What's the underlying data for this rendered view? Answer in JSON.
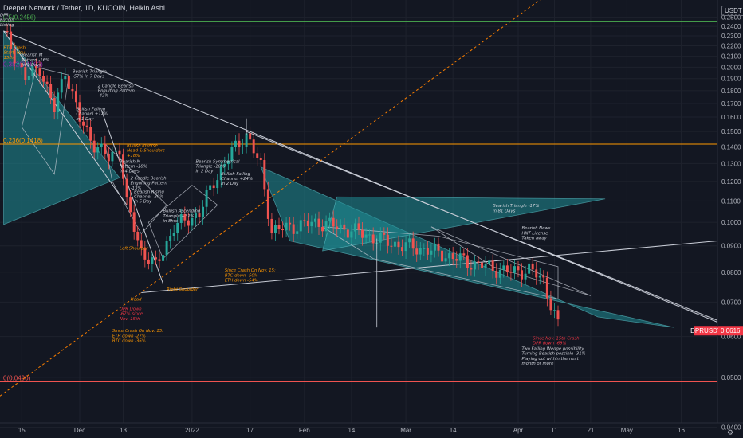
{
  "header": {
    "title": "Deeper Network / Tether, 1D, KUCOIN, Heikin Ashi",
    "currency": "USDT"
  },
  "colors": {
    "background": "#131722",
    "bull": "#26a69a",
    "bear": "#ef5350",
    "fib_0": "#ef5350",
    "fib_236": "#ff9800",
    "fib_382": "#9c27b0",
    "fib_5": "#4caf50",
    "pattern_fill": "#1f8e96",
    "annotation_white": "#d1d4dc",
    "annotation_orange": "#ff9800",
    "annotation_red": "#f23645",
    "price_label_bg": "#f23645"
  },
  "icons": {
    "settings": "gear-icon"
  },
  "chart_data": {
    "type": "candlestick",
    "y_axis": {
      "scale": "log",
      "range": [
        0.0408,
        0.27
      ],
      "ticks": [
        "0.2500",
        "0.2400",
        "0.2300",
        "0.2200",
        "0.2100",
        "0.2000",
        "0.1900",
        "0.1800",
        "0.1700",
        "0.1600",
        "0.1500",
        "0.1400",
        "0.1300",
        "0.1200",
        "0.1100",
        "0.1000",
        "0.0900",
        "0.0800",
        "0.0700",
        "0.0600",
        "0.0500",
        "0.0400"
      ]
    },
    "x_axis": {
      "range": [
        "2021-11-09",
        "2022-05-26"
      ],
      "ticks": [
        {
          "date": "2021-11-15",
          "label": "15"
        },
        {
          "date": "2021-12-01",
          "label": "Dec"
        },
        {
          "date": "2021-12-13",
          "label": "13"
        },
        {
          "date": "2022-01-01",
          "label": "2022"
        },
        {
          "date": "2022-01-17",
          "label": "17"
        },
        {
          "date": "2022-02-01",
          "label": "Feb"
        },
        {
          "date": "2022-02-14",
          "label": "14"
        },
        {
          "date": "2022-03-01",
          "label": "Mar"
        },
        {
          "date": "2022-03-14",
          "label": "14"
        },
        {
          "date": "2022-04-01",
          "label": "Apr"
        },
        {
          "date": "2022-04-11",
          "label": "11"
        },
        {
          "date": "2022-04-21",
          "label": "21"
        },
        {
          "date": "2022-05-01",
          "label": "May"
        },
        {
          "date": "2022-05-16",
          "label": "16"
        }
      ]
    },
    "current_price": {
      "label": "DPRUSDT",
      "value": "0.0616"
    },
    "fib_levels": [
      {
        "label": "0.5(0.2456)",
        "value": 0.2456,
        "key": "fib_5"
      },
      {
        "label": "0.382(0.1992)",
        "value": 0.1992,
        "key": "fib_382"
      },
      {
        "label": "0.236(0.1418)",
        "value": 0.1418,
        "key": "fib_236"
      },
      {
        "label": "0(0.0490)",
        "value": 0.049,
        "key": "fib_0"
      }
    ],
    "anchors": [
      {
        "date": "2021-11-10",
        "price": 0.235
      },
      {
        "date": "2021-11-16",
        "price": 0.19
      },
      {
        "date": "2021-11-20",
        "price": 0.2
      },
      {
        "date": "2021-11-24",
        "price": 0.165
      },
      {
        "date": "2021-11-27",
        "price": 0.198
      },
      {
        "date": "2021-12-01",
        "price": 0.158
      },
      {
        "date": "2021-12-05",
        "price": 0.142
      },
      {
        "date": "2021-12-09",
        "price": 0.133
      },
      {
        "date": "2021-12-12",
        "price": 0.14
      },
      {
        "date": "2021-12-14",
        "price": 0.108
      },
      {
        "date": "2021-12-18",
        "price": 0.088
      },
      {
        "date": "2021-12-22",
        "price": 0.082
      },
      {
        "date": "2021-12-27",
        "price": 0.098
      },
      {
        "date": "2022-01-03",
        "price": 0.104
      },
      {
        "date": "2022-01-07",
        "price": 0.12
      },
      {
        "date": "2022-01-12",
        "price": 0.137
      },
      {
        "date": "2022-01-16",
        "price": 0.148
      },
      {
        "date": "2022-01-20",
        "price": 0.128
      },
      {
        "date": "2022-01-23",
        "price": 0.096
      },
      {
        "date": "2022-01-28",
        "price": 0.098
      },
      {
        "date": "2022-02-05",
        "price": 0.1
      },
      {
        "date": "2022-02-15",
        "price": 0.096
      },
      {
        "date": "2022-02-25",
        "price": 0.091
      },
      {
        "date": "2022-03-08",
        "price": 0.088
      },
      {
        "date": "2022-03-20",
        "price": 0.083
      },
      {
        "date": "2022-03-30",
        "price": 0.08
      },
      {
        "date": "2022-04-04",
        "price": 0.081
      },
      {
        "date": "2022-04-08",
        "price": 0.077
      },
      {
        "date": "2022-04-12",
        "price": 0.063
      }
    ],
    "wicks": [
      {
        "date": "2022-02-21",
        "price": 0.0625
      },
      {
        "date": "2022-01-16",
        "price": 0.159
      }
    ],
    "patterns": [
      {
        "kind": "filled",
        "points": [
          [
            "2021-11-10",
            0.235
          ],
          [
            "2021-12-12",
            0.122
          ],
          [
            "2021-11-10",
            0.099
          ]
        ]
      },
      {
        "kind": "filled",
        "points": [
          [
            "2022-01-20",
            0.128
          ],
          [
            "2022-04-23",
            0.0655
          ],
          [
            "2022-05-14",
            0.0625
          ],
          [
            "2022-01-28",
            0.092
          ]
        ]
      },
      {
        "kind": "filled",
        "points": [
          [
            "2022-02-10",
            0.112
          ],
          [
            "2022-04-25",
            0.111
          ],
          [
            "2022-02-06",
            0.088
          ]
        ]
      },
      {
        "kind": "outline",
        "points": [
          [
            "2021-11-19",
            0.2
          ],
          [
            "2021-11-15",
            0.153
          ],
          [
            "2021-11-24",
            0.124
          ],
          [
            "2021-11-28",
            0.193
          ]
        ]
      },
      {
        "kind": "outline",
        "points": [
          [
            "2021-12-08",
            0.142
          ],
          [
            "2021-12-10",
            0.12
          ],
          [
            "2021-12-18",
            0.095
          ],
          [
            "2021-12-25",
            0.108
          ]
        ]
      },
      {
        "kind": "outline",
        "points": [
          [
            "2021-12-20",
            0.1
          ],
          [
            "2021-12-24",
            0.085
          ],
          [
            "2022-01-08",
            0.108
          ],
          [
            "2022-01-01",
            0.118
          ]
        ]
      },
      {
        "kind": "outline",
        "points": [
          [
            "2022-02-06",
            0.098
          ],
          [
            "2022-03-10",
            0.094
          ],
          [
            "2022-04-12",
            0.082
          ],
          [
            "2022-04-12",
            0.071
          ],
          [
            "2022-02-20",
            0.085
          ]
        ]
      },
      {
        "kind": "outline",
        "points": [
          [
            "2022-03-08",
            0.098
          ],
          [
            "2022-04-21",
            0.072
          ],
          [
            "2022-03-25",
            0.082
          ]
        ]
      }
    ],
    "trend_lines": [
      {
        "from": [
          "2021-11-10",
          0.235
        ],
        "to": [
          "2022-05-26",
          0.064
        ],
        "style": "solid"
      },
      {
        "from": [
          "2022-01-16",
          0.15
        ],
        "to": [
          "2022-05-26",
          0.0645
        ],
        "style": "solid"
      },
      {
        "from": [
          "2021-12-18",
          0.073
        ],
        "to": [
          "2022-05-26",
          0.092
        ],
        "style": "solid"
      },
      {
        "from": [
          "2021-11-09",
          0.046
        ],
        "to": [
          "2022-04-10",
          0.28
        ],
        "style": "dashed"
      },
      {
        "from": [
          "2021-11-10",
          0.235
        ],
        "to": [
          "2021-12-14",
          0.108
        ],
        "style": "solid"
      },
      {
        "from": [
          "2021-12-07",
          0.165
        ],
        "to": [
          "2021-12-24",
          0.076
        ],
        "style": "solid"
      }
    ],
    "annotations": [
      {
        "lines": [
          "DPR",
          "Kucoin",
          "Listing"
        ],
        "date": "2021-11-09",
        "price": 0.251,
        "color": "annotation_white"
      },
      {
        "lines": [
          "BTC Crash",
          "Start, Nov.",
          "15th"
        ],
        "date": "2021-11-10",
        "price": 0.217,
        "color": "annotation_orange"
      },
      {
        "lines": [
          "Bearish M",
          "Pattern -16%",
          "in 7 Days"
        ],
        "date": "2021-11-15",
        "price": 0.21,
        "color": "annotation_white"
      },
      {
        "lines": [
          "Bearish Triangle",
          "-57% in 7 Days"
        ],
        "date": "2021-11-29",
        "price": 0.195,
        "color": "annotation_white"
      },
      {
        "lines": [
          "2 Candle Bearish",
          "Engulfing Pattern",
          "-42%"
        ],
        "date": "2021-12-06",
        "price": 0.183,
        "color": "annotation_white"
      },
      {
        "lines": [
          "Bullish Falling",
          "Channel +12%",
          "in 1 Day"
        ],
        "date": "2021-11-30",
        "price": 0.165,
        "color": "annotation_white"
      },
      {
        "lines": [
          "Bullish Inverse",
          "Head & Shoulders",
          "+18%"
        ],
        "date": "2021-12-14",
        "price": 0.14,
        "color": "annotation_orange"
      },
      {
        "lines": [
          "Bearish M",
          "Pattern -18%",
          "in 4 Days"
        ],
        "date": "2021-12-12",
        "price": 0.1305,
        "color": "annotation_white"
      },
      {
        "lines": [
          "2 Candle Bearish",
          "Engulfing Pattern",
          "-13%"
        ],
        "date": "2021-12-15",
        "price": 0.121,
        "color": "annotation_white"
      },
      {
        "lines": [
          "Bearish Rising",
          "Channel -20%",
          "in 5 Day"
        ],
        "date": "2021-12-16",
        "price": 0.114,
        "color": "annotation_white"
      },
      {
        "lines": [
          "Bearish Symmetrical",
          "Triangle -10%",
          "in 2 Day"
        ],
        "date": "2022-01-02",
        "price": 0.1305,
        "color": "annotation_white"
      },
      {
        "lines": [
          "Bullish Falling",
          "Channel +24%",
          "in 2 Day"
        ],
        "date": "2022-01-09",
        "price": 0.1235,
        "color": "annotation_white"
      },
      {
        "lines": [
          "Bullish Ascending",
          "Triangle +32%",
          "in 8hrs"
        ],
        "date": "2021-12-24",
        "price": 0.1045,
        "color": "annotation_white"
      },
      {
        "lines": [
          "Left Shoulder"
        ],
        "date": "2021-12-12",
        "price": 0.0885,
        "color": "annotation_orange"
      },
      {
        "lines": [
          "Right Shoulder"
        ],
        "date": "2021-12-25",
        "price": 0.0737,
        "color": "annotation_orange"
      },
      {
        "lines": [
          "Head"
        ],
        "date": "2021-12-15",
        "price": 0.0705,
        "color": "annotation_orange"
      },
      {
        "lines": [
          "DPR Down",
          "-67% since",
          "Nov. 15th"
        ],
        "date": "2021-12-12",
        "price": 0.0675,
        "color": "annotation_red"
      },
      {
        "lines": [
          "Since Crash On Nov. 15:",
          "ETH down -27%",
          "BTC down -36%"
        ],
        "date": "2021-12-10",
        "price": 0.0612,
        "color": "annotation_orange"
      },
      {
        "lines": [
          "Since Crash On Nov. 15:",
          "BTC down -50%",
          "ETH down -54%"
        ],
        "date": "2022-01-10",
        "price": 0.0802,
        "color": "annotation_orange"
      },
      {
        "lines": [
          "Bearish Triangle -17%",
          "in 81 Days"
        ],
        "date": "2022-03-25",
        "price": 0.107,
        "color": "annotation_white"
      },
      {
        "lines": [
          "Bearish News",
          "HNT License",
          "Taken away"
        ],
        "date": "2022-04-02",
        "price": 0.0968,
        "color": "annotation_white"
      },
      {
        "lines": [
          "Since Nov. 15th Crash",
          "DPR down -69%"
        ],
        "date": "2022-04-05",
        "price": 0.0592,
        "color": "annotation_red"
      },
      {
        "lines": [
          "Two Falling Wedge possibility",
          "Turning Bearish possible -31%",
          "Playing out within the next",
          "month or more"
        ],
        "date": "2022-04-02",
        "price": 0.0565,
        "color": "annotation_white"
      }
    ]
  }
}
